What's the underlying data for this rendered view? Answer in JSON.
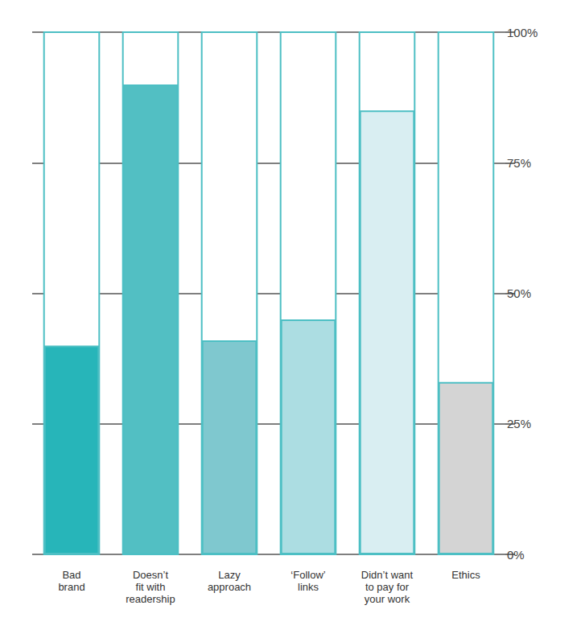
{
  "chart_data": {
    "type": "bar",
    "categories": [
      "Bad\nbrand",
      "Doesn’t\nfit with\nreadership",
      "Lazy\napproach",
      "‘Follow’\nlinks",
      "Didn’t want\nto pay for\nyour work",
      "Ethics"
    ],
    "values": [
      40,
      90,
      41,
      45,
      85,
      33
    ],
    "colors": [
      "#27b5b9",
      "#52bfc3",
      "#7fc8cf",
      "#acdde2",
      "#d9eef2",
      "#d4d4d4"
    ],
    "ylim": [
      0,
      100
    ],
    "yticks": [
      {
        "value": 0,
        "label": "0%"
      },
      {
        "value": 25,
        "label": "25%"
      },
      {
        "value": 50,
        "label": "50%"
      },
      {
        "value": 75,
        "label": "75%"
      },
      {
        "value": 100,
        "label": "100%"
      }
    ],
    "grid": true
  }
}
